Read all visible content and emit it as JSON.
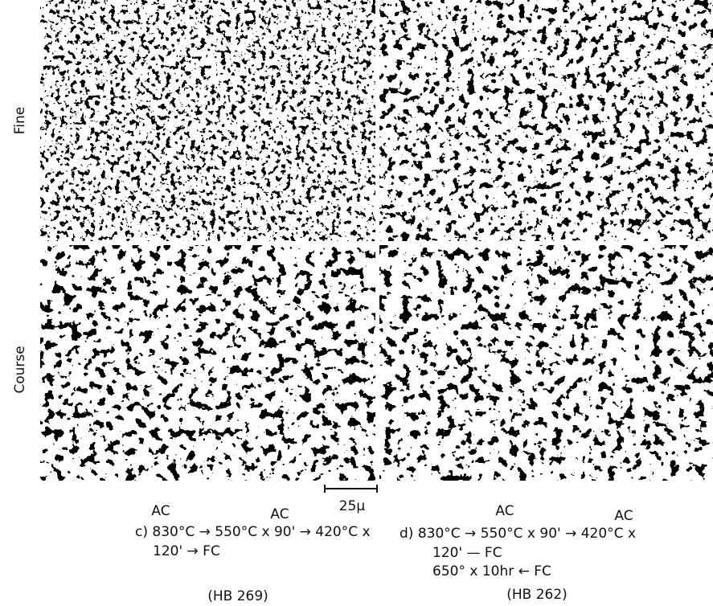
{
  "rows": [
    "Fine",
    "Course"
  ],
  "scale_bar": "25μ",
  "captions": [
    {
      "ac_left": "AC",
      "ac_right": "AC",
      "line1": "c) 830°C → 550°C x 90' → 420°C x",
      "line2": "120' → FC",
      "hardness": "(HB 269)"
    },
    {
      "ac_left": "AC",
      "ac_right": "AC",
      "line1": "d) 830°C → 550°C x 90' → 420°C x",
      "line2": "120' — FC",
      "line3": "650° x 10hr ← FC",
      "hardness": "(HB 262)"
    }
  ]
}
